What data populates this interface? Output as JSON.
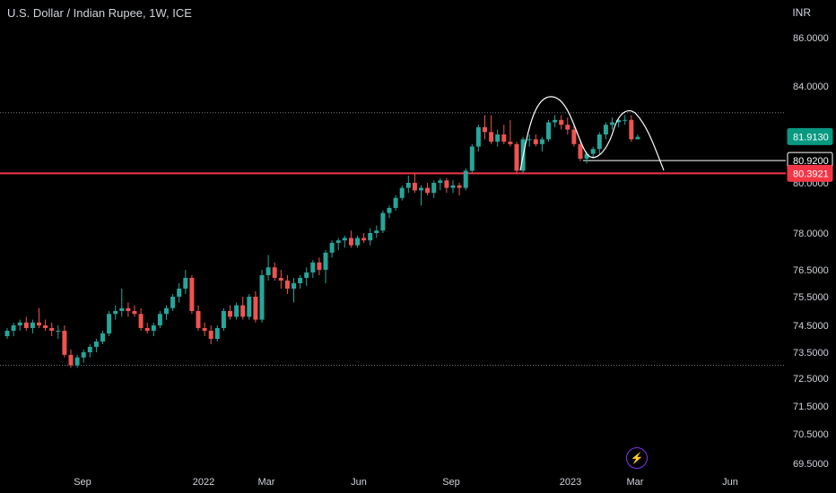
{
  "header": {
    "title": "U.S. Dollar / Indian Rupee, 1W, ICE",
    "currency_unit": "INR"
  },
  "chart_data": {
    "type": "candlestick",
    "title": "U.S. Dollar / Indian Rupee, 1W, ICE",
    "unit": "INR",
    "y_ticks": [
      "86.0000",
      "84.0000",
      "80.0000",
      "78.0000",
      "76.5000",
      "75.5000",
      "74.5000",
      "73.5000",
      "72.5000",
      "71.5000",
      "70.5000",
      "69.5000"
    ],
    "x_ticks": [
      "Sep",
      "2022",
      "Mar",
      "Jun",
      "Sep",
      "2023",
      "Mar",
      "Jun"
    ],
    "price_labels": {
      "last": "81.9130",
      "level_white": "80.9200",
      "level_red": "80.3921"
    },
    "levels": {
      "white": 80.92,
      "red": 80.3921,
      "dotted_top": 82.9,
      "dotted_bottom": 73.0
    },
    "colors": {
      "up": "#26a69a",
      "down": "#ef5350",
      "level_red": "#f23645",
      "last_bg": "#089981",
      "bg": "#000000",
      "text": "#d1d4dc"
    },
    "candles": [
      [
        74.1,
        74.4,
        74.0,
        74.3
      ],
      [
        74.3,
        74.6,
        74.1,
        74.5
      ],
      [
        74.5,
        74.7,
        74.3,
        74.6
      ],
      [
        74.6,
        74.8,
        74.3,
        74.4
      ],
      [
        74.4,
        74.7,
        74.2,
        74.6
      ],
      [
        74.6,
        75.1,
        74.4,
        74.5
      ],
      [
        74.5,
        74.7,
        74.3,
        74.4
      ],
      [
        74.4,
        74.6,
        74.1,
        74.3
      ],
      [
        74.3,
        74.5,
        74.0,
        74.3
      ],
      [
        74.3,
        74.5,
        73.3,
        73.4
      ],
      [
        73.4,
        73.6,
        72.9,
        73.0
      ],
      [
        73.0,
        73.4,
        72.9,
        73.3
      ],
      [
        73.3,
        73.6,
        73.1,
        73.5
      ],
      [
        73.5,
        73.8,
        73.3,
        73.7
      ],
      [
        73.7,
        74.0,
        73.5,
        73.9
      ],
      [
        73.9,
        74.3,
        73.8,
        74.2
      ],
      [
        74.2,
        75.0,
        74.1,
        74.9
      ],
      [
        74.9,
        75.2,
        74.7,
        75.0
      ],
      [
        75.0,
        75.8,
        74.8,
        75.1
      ],
      [
        75.1,
        75.3,
        74.8,
        75.0
      ],
      [
        75.0,
        75.2,
        74.8,
        74.9
      ],
      [
        74.9,
        75.1,
        74.3,
        74.4
      ],
      [
        74.4,
        74.6,
        74.2,
        74.3
      ],
      [
        74.3,
        74.6,
        74.1,
        74.5
      ],
      [
        74.5,
        75.0,
        74.4,
        74.9
      ],
      [
        74.9,
        75.2,
        74.7,
        75.1
      ],
      [
        75.1,
        75.6,
        75.0,
        75.5
      ],
      [
        75.5,
        76.0,
        75.3,
        75.8
      ],
      [
        75.8,
        76.5,
        75.6,
        76.2
      ],
      [
        76.2,
        76.3,
        74.9,
        75.0
      ],
      [
        75.0,
        75.2,
        74.3,
        74.4
      ],
      [
        74.4,
        74.6,
        74.1,
        74.3
      ],
      [
        74.3,
        74.5,
        73.8,
        74.0
      ],
      [
        74.0,
        74.5,
        73.9,
        74.4
      ],
      [
        74.4,
        75.1,
        74.3,
        75.0
      ],
      [
        75.0,
        75.2,
        74.7,
        74.8
      ],
      [
        74.8,
        75.3,
        74.7,
        75.2
      ],
      [
        75.2,
        75.5,
        74.7,
        74.8
      ],
      [
        74.8,
        75.6,
        74.7,
        75.5
      ],
      [
        75.5,
        75.7,
        74.6,
        74.7
      ],
      [
        74.7,
        76.5,
        74.6,
        76.3
      ],
      [
        76.3,
        77.1,
        76.1,
        76.6
      ],
      [
        76.6,
        76.8,
        76.1,
        76.2
      ],
      [
        76.2,
        76.5,
        75.8,
        76.1
      ],
      [
        76.1,
        76.3,
        75.6,
        75.8
      ],
      [
        75.8,
        76.2,
        75.3,
        76.0
      ],
      [
        76.0,
        76.3,
        75.8,
        76.2
      ],
      [
        76.2,
        76.6,
        75.9,
        76.4
      ],
      [
        76.4,
        76.9,
        76.2,
        76.8
      ],
      [
        76.8,
        77.0,
        76.3,
        76.5
      ],
      [
        76.5,
        77.3,
        76.0,
        77.2
      ],
      [
        77.2,
        77.7,
        77.0,
        77.6
      ],
      [
        77.6,
        77.8,
        77.3,
        77.7
      ],
      [
        77.7,
        77.9,
        77.4,
        77.8
      ],
      [
        77.8,
        78.1,
        77.4,
        77.5
      ],
      [
        77.5,
        77.9,
        77.4,
        77.8
      ],
      [
        77.8,
        78.0,
        77.6,
        77.7
      ],
      [
        77.7,
        78.2,
        77.5,
        78.0
      ],
      [
        78.0,
        78.3,
        77.8,
        78.1
      ],
      [
        78.1,
        78.9,
        78.0,
        78.8
      ],
      [
        78.8,
        79.1,
        78.6,
        79.0
      ],
      [
        79.0,
        79.5,
        78.9,
        79.4
      ],
      [
        79.4,
        79.9,
        79.3,
        79.8
      ],
      [
        79.8,
        80.3,
        79.6,
        80.0
      ],
      [
        80.0,
        80.4,
        79.6,
        79.7
      ],
      [
        79.7,
        79.9,
        79.1,
        79.8
      ],
      [
        79.8,
        80.0,
        79.5,
        79.6
      ],
      [
        79.6,
        80.1,
        79.4,
        80.0
      ],
      [
        80.0,
        80.2,
        79.7,
        80.1
      ],
      [
        80.1,
        80.2,
        79.6,
        79.8
      ],
      [
        79.8,
        80.1,
        79.6,
        79.9
      ],
      [
        79.9,
        80.0,
        79.5,
        79.8
      ],
      [
        79.8,
        80.6,
        79.7,
        80.5
      ],
      [
        80.5,
        81.6,
        80.4,
        81.5
      ],
      [
        81.5,
        82.4,
        81.3,
        82.3
      ],
      [
        82.3,
        82.8,
        81.8,
        82.1
      ],
      [
        82.1,
        82.8,
        81.6,
        81.7
      ],
      [
        81.7,
        82.2,
        81.5,
        82.0
      ],
      [
        82.0,
        82.4,
        81.6,
        81.7
      ],
      [
        81.7,
        82.6,
        81.5,
        81.6
      ],
      [
        81.6,
        81.7,
        80.4,
        80.5
      ],
      [
        80.5,
        81.9,
        80.4,
        81.8
      ],
      [
        81.8,
        82.0,
        81.5,
        81.8
      ],
      [
        81.8,
        82.0,
        81.5,
        81.6
      ],
      [
        81.6,
        81.9,
        81.3,
        81.8
      ],
      [
        81.8,
        82.6,
        81.7,
        82.5
      ],
      [
        82.5,
        82.8,
        82.3,
        82.6
      ],
      [
        82.6,
        82.8,
        82.2,
        82.4
      ],
      [
        82.4,
        82.7,
        82.0,
        82.2
      ],
      [
        82.2,
        82.4,
        81.5,
        81.6
      ],
      [
        81.6,
        81.8,
        80.9,
        81.0
      ],
      [
        81.0,
        81.3,
        80.8,
        81.2
      ],
      [
        81.2,
        81.5,
        81.0,
        81.4
      ],
      [
        81.4,
        82.1,
        81.2,
        82.0
      ],
      [
        82.0,
        82.5,
        81.8,
        82.4
      ],
      [
        82.4,
        82.7,
        82.2,
        82.5
      ],
      [
        82.5,
        82.7,
        82.3,
        82.6
      ],
      [
        82.6,
        82.8,
        82.4,
        82.6
      ],
      [
        82.6,
        82.8,
        81.7,
        81.8
      ],
      [
        81.8,
        82.0,
        81.8,
        81.9
      ]
    ]
  }
}
